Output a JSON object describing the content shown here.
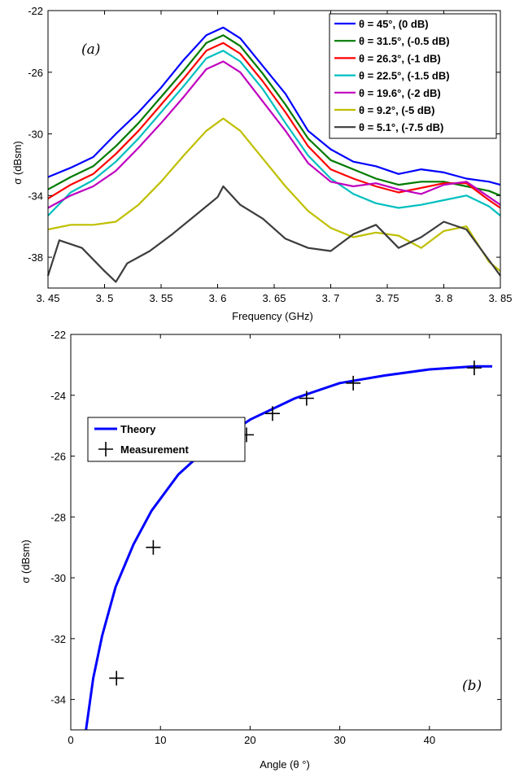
{
  "chart_data": [
    {
      "type": "line",
      "panel_label": "(a)",
      "xlabel": "Frequency (GHz)",
      "ylabel": "σ (dBsm)",
      "xlim": [
        3.45,
        3.85
      ],
      "ylim": [
        -40,
        -22
      ],
      "xticks": [
        "3. 45",
        "3. 5",
        "3. 55",
        "3. 6",
        "3. 65",
        "3. 7",
        "3. 75",
        "3. 8",
        "3. 85"
      ],
      "yticks": [
        "-22",
        "-26",
        "-30",
        "-34",
        "-38"
      ],
      "legend_position": "top-right",
      "series": [
        {
          "name": "θ = 45°, (0 dB)",
          "color": "#0000ff",
          "x": [
            3.45,
            3.47,
            3.49,
            3.51,
            3.53,
            3.55,
            3.57,
            3.59,
            3.605,
            3.62,
            3.64,
            3.66,
            3.68,
            3.7,
            3.72,
            3.74,
            3.76,
            3.78,
            3.8,
            3.82,
            3.84,
            3.85
          ],
          "y": [
            -32.8,
            -32.2,
            -31.5,
            -30.0,
            -28.6,
            -27.0,
            -25.2,
            -23.6,
            -23.1,
            -23.8,
            -25.6,
            -27.4,
            -29.8,
            -31.0,
            -31.8,
            -32.1,
            -32.6,
            -32.3,
            -32.5,
            -32.9,
            -33.1,
            -33.3
          ]
        },
        {
          "name": "θ = 31.5°, (-0.5 dB)",
          "color": "#007a00",
          "x": [
            3.45,
            3.47,
            3.49,
            3.51,
            3.53,
            3.55,
            3.57,
            3.59,
            3.605,
            3.62,
            3.64,
            3.66,
            3.68,
            3.7,
            3.72,
            3.74,
            3.76,
            3.78,
            3.8,
            3.82,
            3.84,
            3.85
          ],
          "y": [
            -33.6,
            -32.8,
            -32.1,
            -30.8,
            -29.3,
            -27.6,
            -25.9,
            -24.1,
            -23.6,
            -24.3,
            -26.1,
            -28.1,
            -30.3,
            -31.7,
            -32.3,
            -32.9,
            -33.3,
            -33.1,
            -33.1,
            -33.4,
            -33.7,
            -34.0
          ]
        },
        {
          "name": "θ = 26.3°, (-1 dB)",
          "color": "#ff0000",
          "x": [
            3.45,
            3.47,
            3.49,
            3.51,
            3.53,
            3.55,
            3.57,
            3.59,
            3.605,
            3.62,
            3.64,
            3.66,
            3.68,
            3.7,
            3.72,
            3.74,
            3.76,
            3.78,
            3.8,
            3.82,
            3.84,
            3.85
          ],
          "y": [
            -34.2,
            -33.3,
            -32.6,
            -31.3,
            -29.8,
            -28.1,
            -26.4,
            -24.6,
            -24.1,
            -24.8,
            -26.6,
            -28.6,
            -30.8,
            -32.3,
            -32.9,
            -33.4,
            -33.8,
            -33.5,
            -33.2,
            -33.2,
            -34.3,
            -34.8
          ]
        },
        {
          "name": "θ = 22.5°, (-1.5 dB)",
          "color": "#00bfbf",
          "x": [
            3.45,
            3.47,
            3.49,
            3.51,
            3.53,
            3.55,
            3.57,
            3.59,
            3.605,
            3.62,
            3.64,
            3.66,
            3.68,
            3.7,
            3.72,
            3.74,
            3.76,
            3.78,
            3.8,
            3.82,
            3.84,
            3.85
          ],
          "y": [
            -35.3,
            -33.8,
            -33.0,
            -31.8,
            -30.3,
            -28.6,
            -26.9,
            -25.1,
            -24.6,
            -25.3,
            -27.1,
            -29.3,
            -31.4,
            -32.9,
            -33.9,
            -34.5,
            -34.8,
            -34.6,
            -34.3,
            -34.0,
            -34.7,
            -35.3
          ]
        },
        {
          "name": "θ = 19.6°, (-2 dB)",
          "color": "#bf00bf",
          "x": [
            3.45,
            3.47,
            3.49,
            3.51,
            3.53,
            3.55,
            3.57,
            3.59,
            3.605,
            3.62,
            3.64,
            3.66,
            3.68,
            3.7,
            3.72,
            3.74,
            3.76,
            3.78,
            3.8,
            3.82,
            3.84,
            3.85
          ],
          "y": [
            -34.8,
            -34.0,
            -33.4,
            -32.4,
            -30.9,
            -29.3,
            -27.6,
            -25.8,
            -25.3,
            -26.0,
            -27.9,
            -29.8,
            -31.9,
            -33.1,
            -33.4,
            -33.2,
            -33.6,
            -33.9,
            -33.3,
            -33.1,
            -34.1,
            -34.6
          ]
        },
        {
          "name": "θ = 9.2°, (-5 dB)",
          "color": "#bfbf00",
          "x": [
            3.45,
            3.47,
            3.49,
            3.51,
            3.53,
            3.55,
            3.57,
            3.59,
            3.605,
            3.62,
            3.64,
            3.66,
            3.68,
            3.7,
            3.72,
            3.74,
            3.76,
            3.78,
            3.8,
            3.82,
            3.84,
            3.85
          ],
          "y": [
            -36.2,
            -35.9,
            -35.9,
            -35.7,
            -34.6,
            -33.1,
            -31.4,
            -29.8,
            -29.0,
            -29.8,
            -31.6,
            -33.4,
            -35.0,
            -36.1,
            -36.7,
            -36.4,
            -36.6,
            -37.4,
            -36.3,
            -36.0,
            -38.3,
            -38.9
          ]
        },
        {
          "name": "θ = 5.1°, (-7.5 dB)",
          "color": "#3c3c3c",
          "x": [
            3.45,
            3.46,
            3.48,
            3.5,
            3.51,
            3.52,
            3.54,
            3.56,
            3.58,
            3.6,
            3.605,
            3.62,
            3.64,
            3.66,
            3.68,
            3.7,
            3.72,
            3.74,
            3.76,
            3.78,
            3.8,
            3.82,
            3.84,
            3.85
          ],
          "y": [
            -39.2,
            -36.9,
            -37.4,
            -38.9,
            -39.6,
            -38.4,
            -37.6,
            -36.5,
            -35.3,
            -34.1,
            -33.4,
            -34.6,
            -35.5,
            -36.8,
            -37.4,
            -37.6,
            -36.5,
            -35.9,
            -37.4,
            -36.7,
            -35.7,
            -36.2,
            -38.2,
            -39.2
          ]
        }
      ]
    },
    {
      "type": "line",
      "panel_label": "(b)",
      "xlabel": "Angle (θ °)",
      "ylabel": "σ (dBsm)",
      "xlim": [
        0,
        48
      ],
      "ylim": [
        -35,
        -22
      ],
      "xticks": [
        "0",
        "10",
        "20",
        "30",
        "40"
      ],
      "yticks": [
        "-22",
        "-24",
        "-26",
        "-28",
        "-30",
        "-32",
        "-34"
      ],
      "legend_position": "top-left",
      "series": [
        {
          "name": "Theory",
          "color": "#0000ff",
          "style": "line",
          "x": [
            1.7,
            2.5,
            3.5,
            5,
            7,
            9,
            12,
            15,
            20,
            25,
            30,
            35,
            40,
            45,
            47
          ],
          "y": [
            -35.0,
            -33.3,
            -31.9,
            -30.3,
            -28.9,
            -27.8,
            -26.6,
            -25.8,
            -24.8,
            -24.1,
            -23.6,
            -23.35,
            -23.15,
            -23.05,
            -23.05
          ]
        },
        {
          "name": "Measurement",
          "color": "#000000",
          "style": "marker-plus",
          "x": [
            5.1,
            9.2,
            19.6,
            22.5,
            26.3,
            31.5,
            45
          ],
          "y": [
            -33.3,
            -29.0,
            -25.3,
            -24.6,
            -24.1,
            -23.6,
            -23.1
          ]
        }
      ]
    }
  ]
}
